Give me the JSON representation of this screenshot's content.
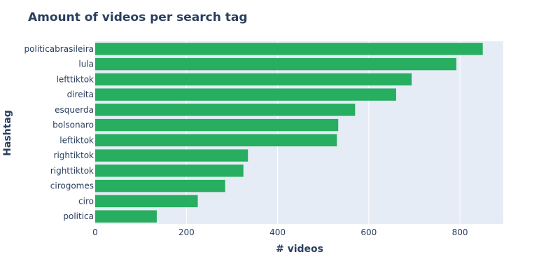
{
  "chart_data": {
    "type": "bar",
    "orientation": "horizontal",
    "title": "Amount of videos per search tag",
    "xlabel": "# videos",
    "ylabel": "Hashtag",
    "categories": [
      "politicabrasileira",
      "lula",
      "lefttiktok",
      "direita",
      "esquerda",
      "bolsonaro",
      "leftiktok",
      "rightiktok",
      "righttiktok",
      "cirogomes",
      "ciro",
      "politica"
    ],
    "values": [
      850,
      792,
      694,
      660,
      570,
      533,
      530,
      335,
      325,
      285,
      225,
      135
    ],
    "xlim": [
      0,
      895
    ],
    "xticks": [
      0,
      200,
      400,
      600,
      800
    ],
    "grid": true,
    "bar_color": "#27ae60",
    "plot_bg": "#e5ecf6"
  }
}
